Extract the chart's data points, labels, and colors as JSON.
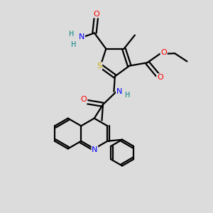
{
  "background_color": "#dcdcdc",
  "atom_colors": {
    "O": "#ff0000",
    "N": "#0000ff",
    "S": "#ccaa00",
    "C": "#000000",
    "H": "#008080"
  },
  "bond_lw": 1.6
}
